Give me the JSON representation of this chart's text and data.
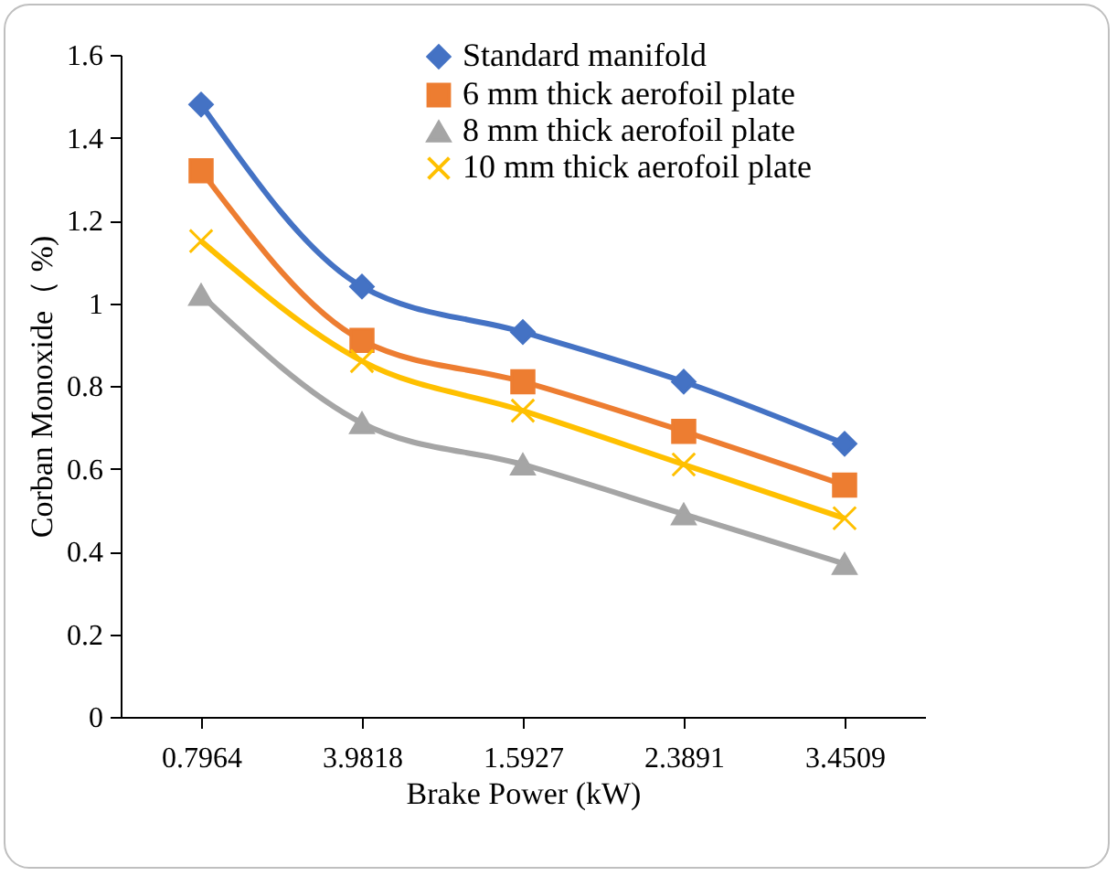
{
  "chart_data": {
    "type": "line",
    "xlabel": "Brake Power (kW)",
    "ylabel": "Corban Monoxide（ %)",
    "categories": [
      "0.7964",
      "3.9818",
      "1.5927",
      "2.3891",
      "3.4509"
    ],
    "series": [
      {
        "name": "Standard manifold",
        "color": "#4472c4",
        "marker": "diamond",
        "values": [
          1.48,
          1.04,
          0.93,
          0.81,
          0.66
        ]
      },
      {
        "name": "6 mm thick  aerofoil plate",
        "color": "#ed7d31",
        "marker": "square",
        "values": [
          1.32,
          0.91,
          0.81,
          0.69,
          0.56
        ]
      },
      {
        "name": "8 mm  thick aerofoil plate",
        "color": "#a5a5a5",
        "marker": "triangle",
        "values": [
          1.02,
          0.71,
          0.61,
          0.49,
          0.37
        ]
      },
      {
        "name": "10 mm thick aerofoil plate",
        "color": "#ffc000",
        "marker": "cross",
        "values": [
          1.15,
          0.86,
          0.74,
          0.61,
          0.48
        ]
      }
    ],
    "ylim": [
      0,
      1.6
    ],
    "yticks": [
      0,
      0.2,
      0.4,
      0.6,
      0.8,
      1,
      1.2,
      1.4,
      1.6
    ],
    "grid": false,
    "legend": "top right"
  }
}
